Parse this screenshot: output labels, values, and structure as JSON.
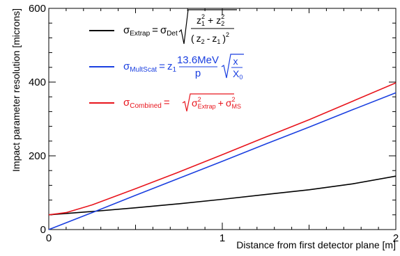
{
  "chart_data": {
    "type": "line",
    "xlabel": "Distance from first detector plane [m]",
    "ylabel": "Impact parameter resolution [microns]",
    "xlim": [
      0,
      2
    ],
    "ylim": [
      0,
      600
    ],
    "x_ticks": [
      "0",
      "1",
      "2"
    ],
    "y_ticks": [
      "0",
      "200",
      "400",
      "600"
    ],
    "grid": false,
    "legend_placement": "top-left",
    "series": [
      {
        "name": "σExtrap = σDet √( (z1² + z2²) / (z2 - z1)² )",
        "color": "#000000",
        "x": [
          0,
          0.25,
          0.5,
          0.75,
          1.0,
          1.25,
          1.5,
          1.75,
          2.0
        ],
        "y": [
          40,
          49,
          59,
          70,
          82,
          95,
          108,
          124,
          145
        ]
      },
      {
        "name": "σMultScat = z1 (13.6MeV / p) √(x / X0)",
        "color": "#1a3fe0",
        "x": [
          0,
          0.25,
          0.5,
          0.75,
          1.0,
          1.25,
          1.5,
          1.75,
          2.0
        ],
        "y": [
          0,
          46,
          93,
          139,
          185,
          232,
          278,
          325,
          371
        ]
      },
      {
        "name": "σCombined = √( σ²Extrap + σ²MS )",
        "color": "#e8141c",
        "x": [
          0,
          0.1,
          0.25,
          0.5,
          0.75,
          1.0,
          1.25,
          1.5,
          1.75,
          2.0
        ],
        "y": [
          40,
          46,
          67,
          111,
          156,
          203,
          251,
          298,
          348,
          398
        ]
      }
    ]
  },
  "legend": {
    "extrap": {
      "color": "#000000",
      "sigma": "σ",
      "lhs_sub": "Extrap",
      "eq": "=",
      "rhs_sigma": "σ",
      "rhs_sub": "Det",
      "num_a": "z",
      "num_a_sup": "2",
      "num_a_sub": "1",
      "num_plus": "+",
      "num_b": "z",
      "num_b_sup": "2",
      "num_b_sub": "2",
      "den_open": "(",
      "den_a": "z",
      "den_a_sub": "2",
      "den_minus": "-",
      "den_b": "z",
      "den_b_sub": "1",
      "den_close": ")",
      "den_sup": "2"
    },
    "multscat": {
      "color": "#1a3fe0",
      "sigma": "σ",
      "lhs_sub": "MultScat",
      "eq": "=",
      "z": "z",
      "z_sub": "1",
      "num": "13.6MeV",
      "den": "p",
      "rnum": "x",
      "rden": "X",
      "rden_sub": "0"
    },
    "combined": {
      "color": "#e8141c",
      "sigma": "σ",
      "lhs_sub": "Combined",
      "eq": "=",
      "t1": "σ",
      "t1_sup": "2",
      "t1_sub": "Extrap",
      "plus": "+",
      "t2": "σ",
      "t2_sup": "2",
      "t2_sub": "MS"
    }
  }
}
